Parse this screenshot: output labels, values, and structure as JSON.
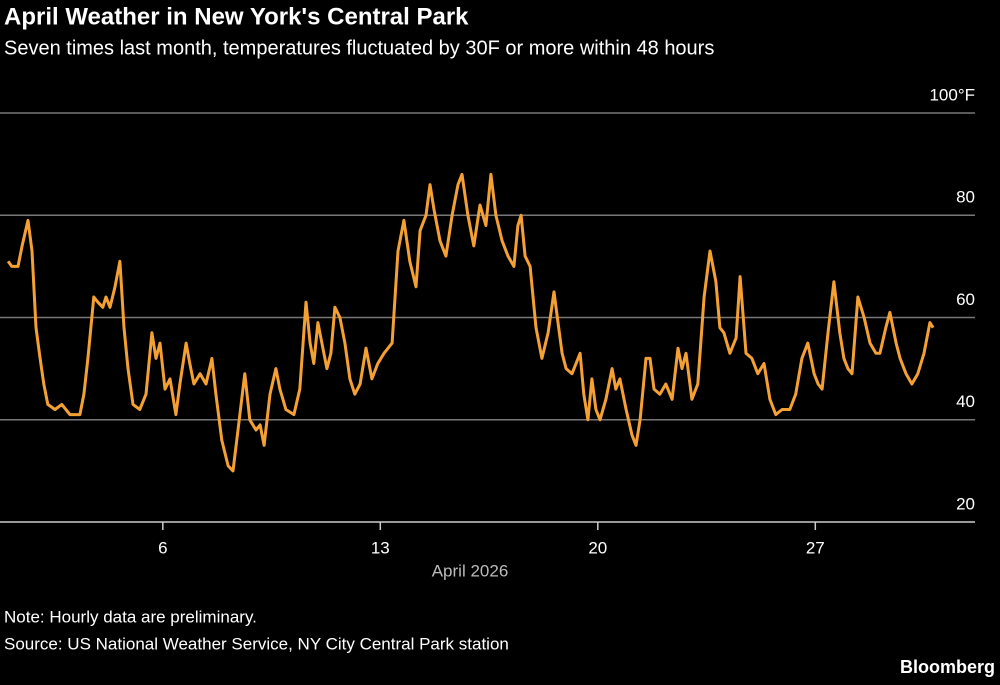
{
  "chart_data": {
    "type": "line",
    "title": "April Weather in New York's Central Park",
    "subtitle": "Seven times last month, temperatures fluctuated by 30F or more within 48 hours",
    "x_label": "April 2026",
    "note": "Note: Hourly data are preliminary.",
    "source": "Source: US National Weather Service, NY City Central Park station",
    "logo": "Bloomberg",
    "color": "#f5a033",
    "grid": true,
    "xlim": [
      0.76,
      32.14
    ],
    "xticks": [
      6,
      13,
      20,
      27
    ],
    "ylim": [
      20,
      100
    ],
    "yticks": [
      20,
      40,
      60,
      80,
      {
        "value": 100,
        "label": "100°F"
      }
    ],
    "x": [
      1.02,
      1.14,
      1.34,
      1.47,
      1.66,
      1.79,
      1.92,
      2.05,
      2.17,
      2.3,
      2.53,
      2.75,
      3.01,
      3.33,
      3.46,
      3.59,
      3.78,
      3.91,
      4.07,
      4.17,
      4.3,
      4.46,
      4.62,
      4.75,
      4.88,
      5.04,
      5.26,
      5.46,
      5.65,
      5.78,
      5.91,
      6.07,
      6.23,
      6.42,
      6.55,
      6.75,
      6.87,
      7.0,
      7.2,
      7.39,
      7.58,
      7.71,
      7.9,
      8.1,
      8.26,
      8.42,
      8.64,
      8.8,
      9.0,
      9.13,
      9.26,
      9.45,
      9.64,
      9.77,
      9.96,
      10.22,
      10.41,
      10.61,
      10.74,
      10.86,
      10.99,
      11.12,
      11.28,
      11.41,
      11.54,
      11.7,
      11.86,
      12.02,
      12.18,
      12.35,
      12.54,
      12.73,
      12.92,
      13.12,
      13.38,
      13.57,
      13.76,
      13.95,
      14.15,
      14.28,
      14.47,
      14.6,
      14.73,
      14.92,
      15.11,
      15.31,
      15.5,
      15.63,
      15.82,
      16.01,
      16.21,
      16.4,
      16.56,
      16.72,
      16.92,
      17.11,
      17.3,
      17.43,
      17.53,
      17.66,
      17.82,
      18.01,
      18.2,
      18.4,
      18.59,
      18.72,
      18.85,
      18.98,
      19.17,
      19.43,
      19.55,
      19.68,
      19.81,
      19.94,
      20.07,
      20.26,
      20.46,
      20.58,
      20.71,
      20.91,
      21.1,
      21.23,
      21.36,
      21.55,
      21.68,
      21.81,
      22.0,
      22.19,
      22.39,
      22.58,
      22.71,
      22.84,
      23.03,
      23.22,
      23.42,
      23.61,
      23.8,
      23.93,
      24.06,
      24.25,
      24.45,
      24.58,
      24.77,
      24.96,
      25.15,
      25.35,
      25.54,
      25.73,
      25.93,
      26.18,
      26.37,
      26.57,
      26.76,
      26.96,
      27.09,
      27.22,
      27.41,
      27.6,
      27.79,
      27.92,
      28.05,
      28.18,
      28.37,
      28.57,
      28.76,
      28.95,
      29.08,
      29.27,
      29.4,
      29.6,
      29.73,
      29.92,
      30.11,
      30.3,
      30.5,
      30.69,
      30.79
    ],
    "values": [
      71,
      70,
      70,
      74,
      79,
      73,
      58,
      52,
      47,
      43,
      42,
      43,
      41,
      41,
      45,
      52,
      64,
      63,
      62,
      64,
      62,
      66,
      71,
      58,
      50,
      43,
      42,
      45,
      57,
      52,
      55,
      46,
      48,
      41,
      47,
      55,
      51,
      47,
      49,
      47,
      52,
      45,
      36,
      31,
      30,
      38,
      49,
      40,
      38,
      39,
      35,
      45,
      50,
      46,
      42,
      41,
      46,
      63,
      55,
      51,
      59,
      55,
      50,
      53,
      62,
      60,
      55,
      48,
      45,
      47,
      54,
      48,
      51,
      53,
      55,
      73,
      79,
      71,
      66,
      77,
      80,
      86,
      81,
      75,
      72,
      80,
      86,
      88,
      80,
      74,
      82,
      78,
      88,
      80,
      75,
      72,
      70,
      78,
      80,
      72,
      70,
      58,
      52,
      57,
      65,
      59,
      53,
      50,
      49,
      53,
      45,
      40,
      48,
      42,
      40,
      44,
      50,
      46,
      48,
      42,
      37,
      35,
      40,
      52,
      52,
      46,
      45,
      47,
      44,
      54,
      50,
      53,
      44,
      47,
      64,
      73,
      67,
      58,
      57,
      53,
      56,
      68,
      53,
      52,
      49,
      51,
      44,
      41,
      42,
      42,
      45,
      52,
      55,
      49,
      47,
      46,
      57,
      67,
      57,
      52,
      50,
      49,
      64,
      60,
      55,
      53,
      53,
      58,
      61,
      55,
      52,
      49,
      47,
      49,
      53,
      59,
      58
    ]
  }
}
